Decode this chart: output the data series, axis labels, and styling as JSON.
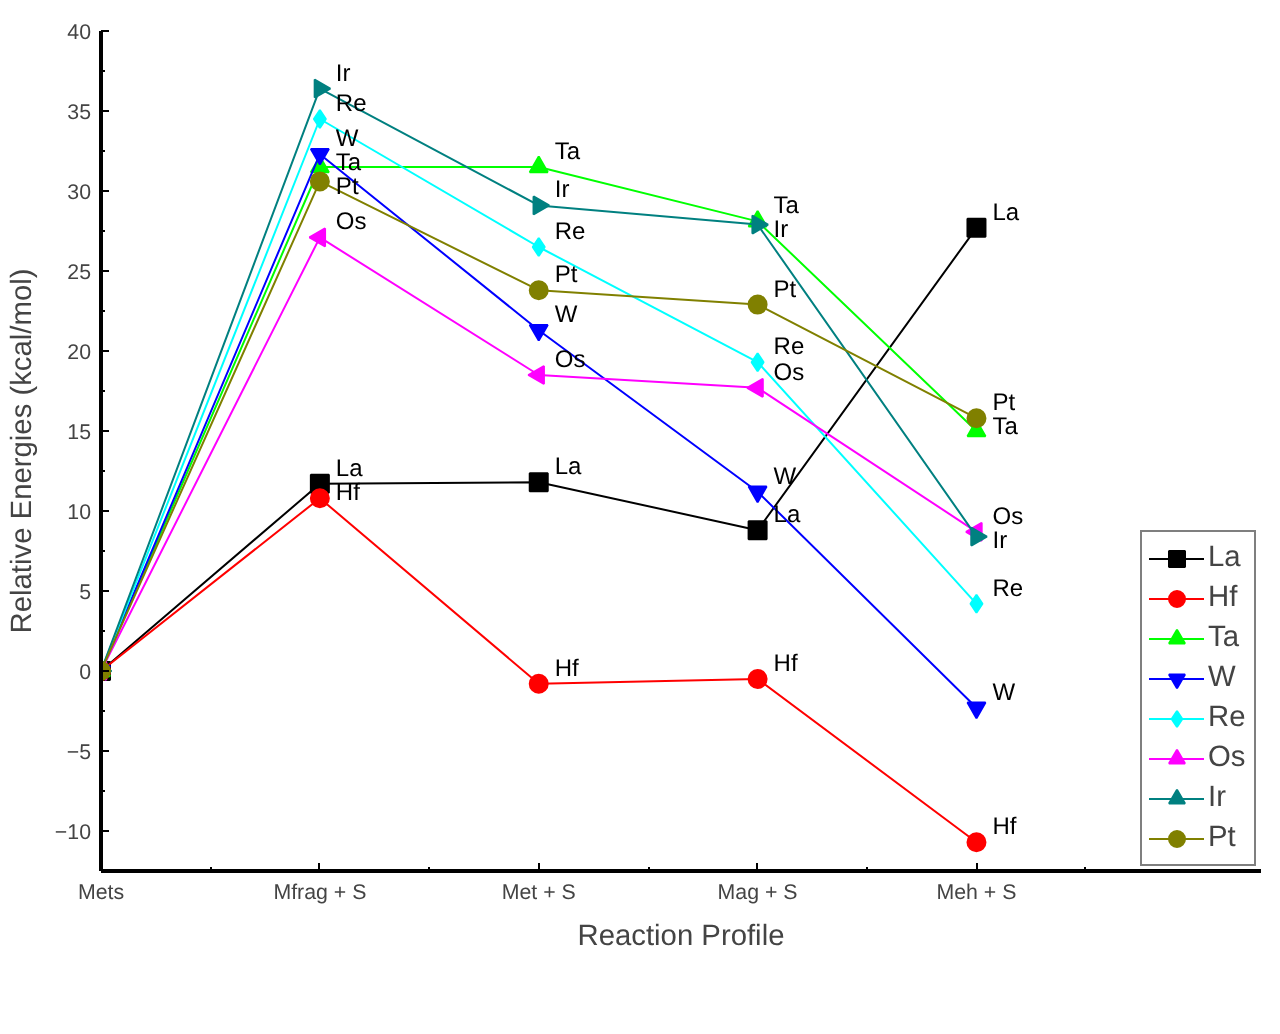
{
  "chart_data": {
    "type": "line",
    "xlabel": "Reaction Profile",
    "ylabel": "Relative Energies (kcal/mol)",
    "categories": [
      "Mets",
      "Mfrag + S",
      "Met + S",
      "Mag + S",
      "Meh + S"
    ],
    "ylim": [
      -12.5,
      40
    ],
    "yticks": [
      -10,
      -5,
      0,
      5,
      10,
      15,
      20,
      25,
      30,
      35,
      40
    ],
    "grid": false,
    "legend": "bottom right",
    "line_style": "solid",
    "series": [
      {
        "name": "La",
        "color": "#000000",
        "marker": "square",
        "values": [
          0,
          11.7,
          11.8,
          8.8,
          27.7
        ],
        "value_labels": [
          null,
          "La",
          "La",
          "La",
          "La"
        ]
      },
      {
        "name": "Hf",
        "color": "#ff0000",
        "marker": "circle",
        "values": [
          0,
          10.8,
          -0.8,
          -0.5,
          -10.7
        ],
        "value_labels": [
          null,
          "Hf",
          "Hf",
          "Hf",
          "Hf"
        ]
      },
      {
        "name": "Ta",
        "color": "#00ff00",
        "marker": "triangle",
        "values": [
          0,
          31.5,
          31.5,
          28.1,
          15.0
        ],
        "value_labels": [
          null,
          "Ta",
          "Ta",
          "Ta",
          "Ta"
        ]
      },
      {
        "name": "W",
        "color": "#0000ff",
        "marker": "triangle-down",
        "values": [
          0,
          32.3,
          21.3,
          11.2,
          -2.3
        ],
        "value_labels": [
          null,
          "W",
          "W",
          "W",
          "W"
        ]
      },
      {
        "name": "Re",
        "color": "#00ffff",
        "marker": "diamond",
        "values": [
          0,
          34.5,
          26.5,
          19.3,
          4.2
        ],
        "value_labels": [
          null,
          "Re",
          "Re",
          "Re",
          "Re"
        ]
      },
      {
        "name": "Os",
        "color": "#ff00ff",
        "marker": "triangle-left",
        "values": [
          0,
          27.1,
          18.5,
          17.7,
          8.7
        ],
        "value_labels": [
          null,
          "Os",
          "Os",
          "Os",
          "Os"
        ]
      },
      {
        "name": "Ir",
        "color": "#008080",
        "marker": "triangle-right",
        "values": [
          0,
          36.4,
          29.1,
          27.9,
          8.4
        ],
        "value_labels": [
          null,
          "Ir",
          "Ir",
          "Ir",
          "Ir"
        ]
      },
      {
        "name": "Pt",
        "color": "#808000",
        "marker": "circle",
        "values": [
          0,
          30.6,
          23.8,
          22.9,
          15.8
        ],
        "value_labels": [
          null,
          "Pt",
          "Pt",
          "Pt",
          "Pt"
        ]
      }
    ]
  }
}
